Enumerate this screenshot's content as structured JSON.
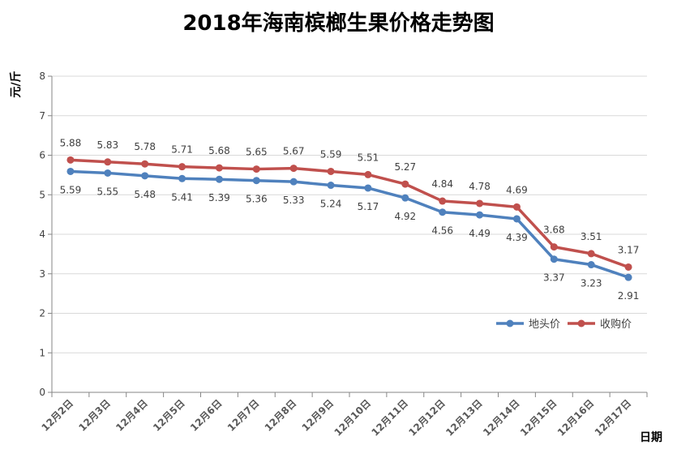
{
  "chart_data": {
    "type": "line",
    "title": "2018年海南槟榔生果价格走势图",
    "ylabel": "元/斤",
    "xlabel": "日期",
    "ylim": [
      0,
      8
    ],
    "yticks": [
      0,
      1,
      2,
      3,
      4,
      5,
      6,
      7,
      8
    ],
    "grid": true,
    "legend_position": "right",
    "categories": [
      "12月2日",
      "12月3日",
      "12月4日",
      "12月5日",
      "12月6日",
      "12月7日",
      "12月8日",
      "12月9日",
      "12月10日",
      "12月11日",
      "12月12日",
      "12月13日",
      "12月14日",
      "12月15日",
      "12月16日",
      "12月17日"
    ],
    "series": [
      {
        "name": "地头价",
        "color": "#4F81BD",
        "values": [
          5.59,
          5.55,
          5.48,
          5.41,
          5.39,
          5.36,
          5.33,
          5.24,
          5.17,
          4.92,
          4.56,
          4.49,
          4.39,
          3.37,
          3.23,
          2.91
        ],
        "labels": [
          "5.59",
          "5.55",
          "5.48",
          "5.41",
          "5.39",
          "5.36",
          "5.33",
          "5.24",
          "5.17",
          "4.92",
          "4.56",
          "4.49",
          "4.39",
          "3.37",
          "3.23",
          "2.91"
        ]
      },
      {
        "name": "收购价",
        "color": "#C0504D",
        "values": [
          5.88,
          5.83,
          5.78,
          5.71,
          5.68,
          5.65,
          5.67,
          5.59,
          5.51,
          5.27,
          4.84,
          4.78,
          4.69,
          3.68,
          3.51,
          3.17
        ],
        "labels": [
          "5.88",
          "5.83",
          "5.78",
          "5.71",
          "5.68",
          "5.65",
          "5.67",
          "5.59",
          "5.51",
          "5.27",
          "4.84",
          "4.78",
          "4.69",
          "3.68",
          "3.51",
          "3.17"
        ]
      }
    ]
  }
}
